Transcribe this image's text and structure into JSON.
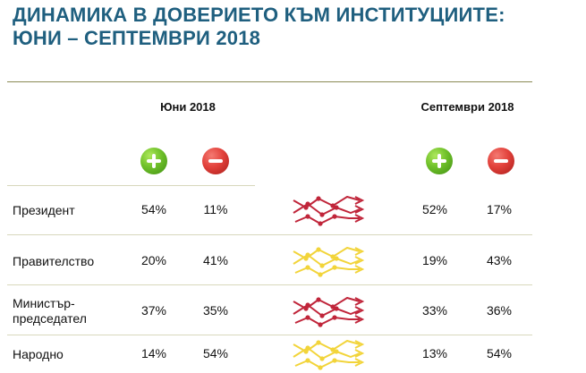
{
  "title": {
    "line1": "ДИНАМИКА В ДОВЕРИЕТО КЪМ ИНСТИТУЦИИТЕ:",
    "line2": "ЮНИ – СЕПТЕМВРИ 2018"
  },
  "periods": {
    "june": "Юни 2018",
    "september": "Септември 2018"
  },
  "colors": {
    "title": "#1f5f7f",
    "plus": "#6fc02a",
    "minus": "#e2413b",
    "trend_down": "#c0253a",
    "trend_up": "#f2d43a"
  },
  "icons": {
    "plus": "plus-circle-icon",
    "minus": "minus-circle-icon"
  },
  "rows": [
    {
      "institution": [
        "Президент"
      ],
      "june_trust": "54%",
      "june_distrust": "11%",
      "sep_trust": "52%",
      "sep_distrust": "17%",
      "trend": "down"
    },
    {
      "institution": [
        "Правителство"
      ],
      "june_trust": "20%",
      "june_distrust": "41%",
      "sep_trust": "19%",
      "sep_distrust": "43%",
      "trend": "up"
    },
    {
      "institution": [
        "Министър-",
        "председател"
      ],
      "june_trust": "37%",
      "june_distrust": "35%",
      "sep_trust": "33%",
      "sep_distrust": "36%",
      "trend": "down"
    },
    {
      "institution": [
        "Народно"
      ],
      "june_trust": "14%",
      "june_distrust": "54%",
      "sep_trust": "13%",
      "sep_distrust": "54%",
      "trend": "up"
    }
  ],
  "chart_data": {
    "type": "table",
    "title": "ДИНАМИКА В ДОВЕРИЕТО КЪМ ИНСТИТУЦИИТЕ: ЮНИ – СЕПТЕМВРИ 2018",
    "columns": [
      "Юни 2018 +",
      "Юни 2018 −",
      "Септември 2018 +",
      "Септември 2018 −"
    ],
    "rows": [
      {
        "label": "Президент",
        "values": [
          54,
          11,
          52,
          17
        ]
      },
      {
        "label": "Правителство",
        "values": [
          20,
          41,
          19,
          43
        ]
      },
      {
        "label": "Министър-председател",
        "values": [
          37,
          35,
          33,
          36
        ]
      },
      {
        "label": "Народно",
        "values": [
          14,
          54,
          13,
          54
        ]
      }
    ]
  }
}
